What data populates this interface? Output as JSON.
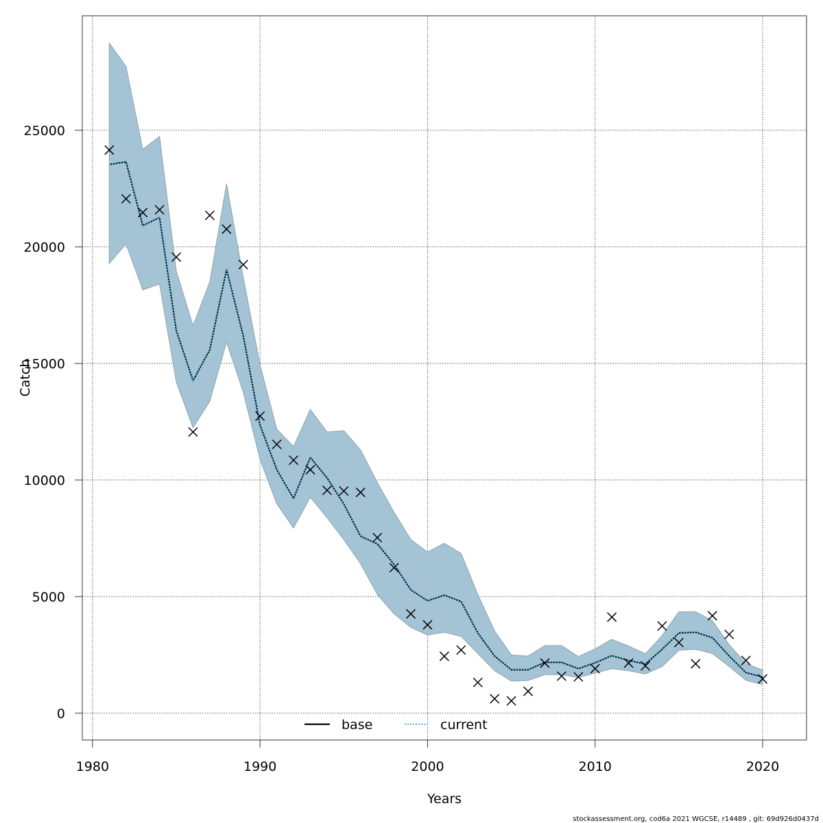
{
  "chart_data": {
    "type": "line",
    "title": "",
    "xlabel": "Years",
    "ylabel": "Catch",
    "xlim": [
      1979.39,
      2022.62
    ],
    "ylim": [
      -1150,
      29910
    ],
    "x_ticks": [
      1980,
      1990,
      2000,
      2010,
      2020
    ],
    "y_ticks": [
      0,
      5000,
      10000,
      15000,
      20000,
      25000
    ],
    "x_tick_labels": [
      "1980",
      "1990",
      "2000",
      "2010",
      "2020"
    ],
    "y_tick_labels": [
      "0",
      "5000",
      "10000",
      "15000",
      "20000",
      "25000"
    ],
    "grid": true,
    "legend_position": "bottom-center",
    "colors": {
      "band": "#a4c4d6",
      "band_edge": "#8ea3ae",
      "base": "#000000",
      "current": "#4fb3e3",
      "observed": "#000000"
    },
    "x": [
      1981,
      1982,
      1983,
      1984,
      1985,
      1986,
      1987,
      1988,
      1989,
      1990,
      1991,
      1992,
      1993,
      1994,
      1995,
      1996,
      1997,
      1998,
      1999,
      2000,
      2001,
      2002,
      2003,
      2004,
      2005,
      2006,
      2007,
      2008,
      2009,
      2010,
      2011,
      2012,
      2013,
      2014,
      2015,
      2016,
      2017,
      2018,
      2019,
      2020
    ],
    "observed": [
      24150,
      22060,
      21470,
      21590,
      19560,
      12060,
      21350,
      20760,
      19240,
      12740,
      11530,
      10850,
      10440,
      9560,
      9530,
      9470,
      7530,
      6240,
      4260,
      3790,
      2440,
      2710,
      1320,
      620,
      530,
      940,
      2150,
      1590,
      1560,
      1910,
      4120,
      2150,
      2030,
      3740,
      3030,
      2120,
      4180,
      3380,
      2260,
      1470
    ],
    "confidence_band": {
      "upper": [
        28740,
        27740,
        24180,
        24740,
        18970,
        16620,
        18500,
        22710,
        18680,
        14940,
        12180,
        11440,
        13030,
        12060,
        12120,
        11290,
        9900,
        8620,
        7450,
        6910,
        7290,
        6850,
        5090,
        3530,
        2500,
        2450,
        2900,
        2900,
        2430,
        2760,
        3170,
        2880,
        2550,
        3330,
        4350,
        4350,
        3970,
        2940,
        2130,
        1850
      ],
      "lower": [
        19290,
        20120,
        18150,
        18410,
        14200,
        12240,
        13380,
        15910,
        13760,
        10880,
        8970,
        7940,
        9260,
        8380,
        7440,
        6410,
        5090,
        4260,
        3680,
        3350,
        3470,
        3290,
        2560,
        1820,
        1380,
        1400,
        1650,
        1650,
        1530,
        1720,
        1910,
        1820,
        1680,
        2000,
        2700,
        2740,
        2560,
        2000,
        1410,
        1230
      ]
    },
    "series": [
      {
        "name": "base",
        "style": "solid",
        "values": [
          23530,
          23650,
          20910,
          21260,
          16410,
          14260,
          15590,
          19030,
          16180,
          12350,
          10440,
          9210,
          10970,
          10090,
          8970,
          7590,
          7260,
          6380,
          5290,
          4820,
          5060,
          4790,
          3440,
          2450,
          1860,
          1860,
          2180,
          2180,
          1910,
          2160,
          2470,
          2260,
          2110,
          2740,
          3440,
          3470,
          3240,
          2450,
          1740,
          1550
        ]
      },
      {
        "name": "current",
        "style": "dotted",
        "values": [
          23530,
          23650,
          20910,
          21260,
          16410,
          14260,
          15590,
          19030,
          16180,
          12350,
          10440,
          9210,
          10970,
          10090,
          8970,
          7590,
          7260,
          6380,
          5290,
          4820,
          5060,
          4790,
          3440,
          2450,
          1860,
          1860,
          2180,
          2180,
          1910,
          2160,
          2470,
          2260,
          2110,
          2740,
          3440,
          3470,
          3240,
          2450,
          1740,
          1550
        ]
      }
    ]
  },
  "footer": "stockassessment.org, cod6a  2021  WGCSE, r14489 , git: 69d926d0437d"
}
